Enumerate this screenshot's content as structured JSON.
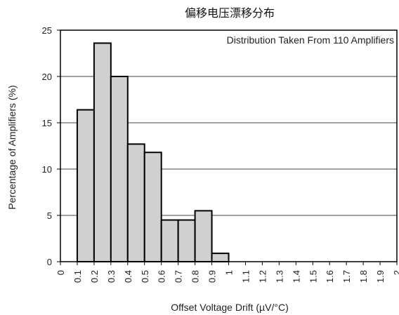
{
  "chart_data": {
    "type": "bar",
    "title": "偏移电压漂移分布",
    "xlabel": "Offset Voltage Drift (µV/°C)",
    "ylabel": "Percentage of Amplifiers (%)",
    "annotation": "Distribution Taken From 110 Amplifiers",
    "x_ticks": [
      "0",
      "0.1",
      "0.2",
      "0.3",
      "0.4",
      "0.5",
      "0.6",
      "0.7",
      "0.8",
      "0.9",
      "1",
      "1.1",
      "1.2",
      "1.3",
      "1.4",
      "1.5",
      "1.6",
      "1.7",
      "1.8",
      "1.9",
      "2"
    ],
    "y_ticks": [
      "0",
      "5",
      "10",
      "15",
      "20",
      "25"
    ],
    "xlim": [
      0,
      2
    ],
    "ylim": [
      0,
      25
    ],
    "grid": "horizontal",
    "bins": [
      {
        "start": 0.1,
        "end": 0.2,
        "value": 16.4
      },
      {
        "start": 0.2,
        "end": 0.3,
        "value": 23.6
      },
      {
        "start": 0.3,
        "end": 0.4,
        "value": 20.0
      },
      {
        "start": 0.4,
        "end": 0.5,
        "value": 12.7
      },
      {
        "start": 0.5,
        "end": 0.6,
        "value": 11.8
      },
      {
        "start": 0.6,
        "end": 0.7,
        "value": 4.5
      },
      {
        "start": 0.7,
        "end": 0.8,
        "value": 4.5
      },
      {
        "start": 0.8,
        "end": 0.9,
        "value": 5.5
      },
      {
        "start": 0.9,
        "end": 1.0,
        "value": 0.9
      }
    ],
    "colors": {
      "bar_fill": "#d0d0d0",
      "bar_stroke": "#000000",
      "grid": "#000000"
    }
  }
}
